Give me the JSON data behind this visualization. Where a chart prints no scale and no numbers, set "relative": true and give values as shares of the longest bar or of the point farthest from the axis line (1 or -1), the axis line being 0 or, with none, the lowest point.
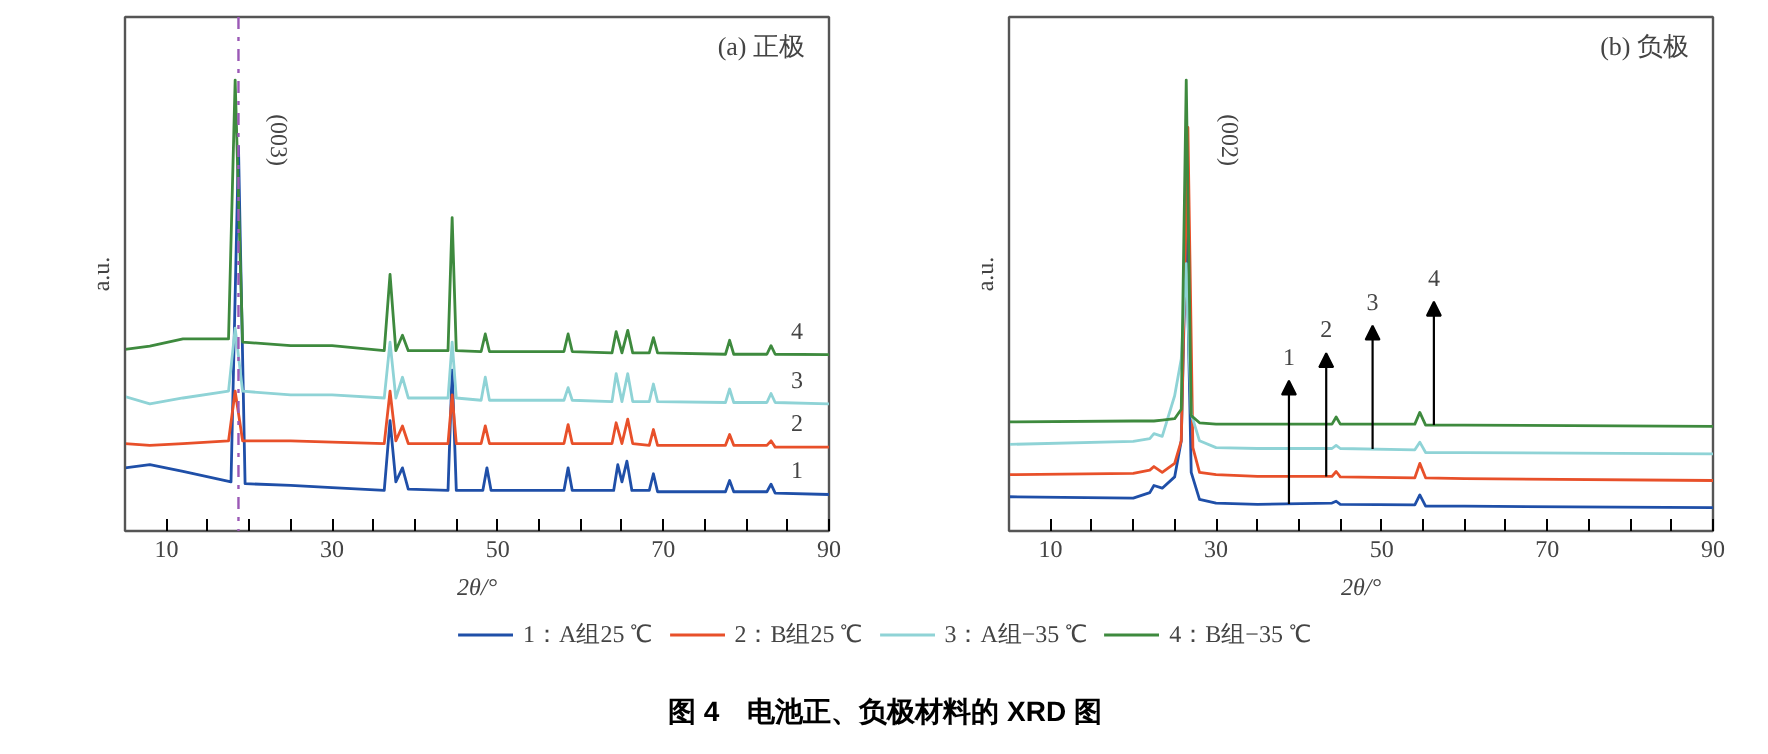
{
  "chart_data": [
    {
      "type": "line",
      "title": "(a) 正极",
      "xlabel": "2θ/°",
      "ylabel": "a.u.",
      "relative": true,
      "tick_labels": "x",
      "grid": false,
      "legend": "bottom",
      "line_style": "solid",
      "marker": "none",
      "xlim": [
        5,
        90
      ],
      "xticks": [
        10,
        {
          "value": 15,
          "label": null
        },
        {
          "value": 20,
          "label": null
        },
        {
          "value": 25,
          "label": null
        },
        30,
        {
          "value": 35,
          "label": null
        },
        {
          "value": 40,
          "label": null
        },
        {
          "value": 45,
          "label": null
        },
        50,
        {
          "value": 55,
          "label": null
        },
        {
          "value": 60,
          "label": null
        },
        {
          "value": 65,
          "label": null
        },
        70,
        {
          "value": 75,
          "label": null
        },
        {
          "value": 80,
          "label": null
        },
        {
          "value": 85,
          "label": null
        },
        90
      ],
      "series": [
        {
          "name": "1：A组25 ℃",
          "color": "#1f4fa8",
          "x": [
            5,
            8,
            12,
            17.8,
            18.7,
            19.5,
            25,
            30,
            36.3,
            37,
            37.7,
            38.5,
            39.2,
            44,
            44.5,
            45,
            48.2,
            48.7,
            49.2,
            58,
            58.5,
            59,
            64,
            64.5,
            65,
            65.6,
            66.2,
            68.3,
            68.8,
            69.3,
            77.5,
            78,
            78.5,
            82.5,
            83,
            83.5,
            90
          ],
          "values": [
            0.14,
            0.147,
            0.132,
            0.109,
            0.853,
            0.105,
            0.101,
            0.096,
            0.09,
            0.245,
            0.109,
            0.14,
            0.093,
            0.09,
            0.357,
            0.09,
            0.09,
            0.14,
            0.09,
            0.09,
            0.14,
            0.09,
            0.09,
            0.147,
            0.109,
            0.155,
            0.09,
            0.09,
            0.127,
            0.087,
            0.087,
            0.112,
            0.087,
            0.087,
            0.104,
            0.084,
            0.081
          ]
        },
        {
          "name": "2：B组25 ℃",
          "color": "#e8502a",
          "x": [
            5,
            8,
            12,
            17.5,
            18.3,
            19.2,
            25,
            30,
            36.3,
            37,
            37.7,
            38.5,
            39.2,
            44,
            44.5,
            45,
            48,
            48.5,
            49,
            58,
            58.5,
            59,
            63.8,
            64.3,
            65,
            65.7,
            66.3,
            68.3,
            68.8,
            69.3,
            77.5,
            78,
            78.5,
            82.5,
            83,
            83.5,
            90
          ],
          "values": [
            0.194,
            0.19,
            0.194,
            0.2,
            0.31,
            0.2,
            0.2,
            0.197,
            0.194,
            0.31,
            0.2,
            0.233,
            0.194,
            0.194,
            0.302,
            0.194,
            0.194,
            0.233,
            0.194,
            0.194,
            0.236,
            0.194,
            0.194,
            0.24,
            0.194,
            0.248,
            0.194,
            0.19,
            0.225,
            0.19,
            0.19,
            0.214,
            0.19,
            0.19,
            0.2,
            0.186,
            0.186
          ]
        },
        {
          "name": "3：A组−35 ℃",
          "color": "#8fd3d6",
          "x": [
            5,
            8,
            12,
            17.5,
            18.3,
            19.2,
            25,
            30,
            36.3,
            37,
            37.7,
            38.5,
            39.2,
            44,
            44.5,
            45,
            48,
            48.5,
            49,
            58,
            58.5,
            59,
            63.8,
            64.3,
            65,
            65.7,
            66.3,
            68.3,
            68.8,
            69.3,
            77.5,
            78,
            78.5,
            82.5,
            83,
            83.5,
            90
          ],
          "values": [
            0.298,
            0.282,
            0.295,
            0.31,
            0.45,
            0.31,
            0.302,
            0.302,
            0.295,
            0.419,
            0.295,
            0.341,
            0.295,
            0.295,
            0.419,
            0.295,
            0.29,
            0.341,
            0.29,
            0.29,
            0.318,
            0.29,
            0.287,
            0.349,
            0.287,
            0.349,
            0.287,
            0.287,
            0.326,
            0.287,
            0.285,
            0.315,
            0.285,
            0.285,
            0.305,
            0.285,
            0.282
          ]
        },
        {
          "name": "4：B组−35 ℃",
          "color": "#3e8a3e",
          "x": [
            5,
            8,
            12,
            17.5,
            18.3,
            19.2,
            25,
            30,
            36.3,
            37,
            37.7,
            38.5,
            39.2,
            44,
            44.5,
            45,
            48,
            48.5,
            49,
            58,
            58.5,
            59,
            63.8,
            64.3,
            65,
            65.7,
            66.3,
            68.3,
            68.8,
            69.3,
            77.5,
            78,
            78.5,
            82.5,
            83,
            83.5,
            90
          ],
          "values": [
            0.403,
            0.41,
            0.426,
            0.426,
            1.0,
            0.419,
            0.411,
            0.411,
            0.4,
            0.569,
            0.4,
            0.434,
            0.4,
            0.4,
            0.695,
            0.4,
            0.398,
            0.437,
            0.398,
            0.398,
            0.437,
            0.398,
            0.395,
            0.442,
            0.395,
            0.445,
            0.395,
            0.395,
            0.429,
            0.395,
            0.392,
            0.423,
            0.392,
            0.392,
            0.411,
            0.392,
            0.391
          ]
        }
      ],
      "ref_lines": [
        {
          "axis": "x",
          "value": 18.7,
          "color": "#9b59b6",
          "line_style": "dashed"
        }
      ],
      "annotations": [
        "1",
        "2",
        "3",
        "4",
        {
          "text": "(003)",
          "x": 18.3,
          "y": 1.0
        }
      ]
    },
    {
      "type": "line",
      "title": "(b) 负极",
      "xlabel": "2θ/°",
      "ylabel": "a.u.",
      "relative": true,
      "tick_labels": "x",
      "grid": false,
      "line_style": "solid",
      "marker": "none",
      "xlim": [
        5,
        90
      ],
      "xticks": [
        10,
        {
          "value": 15,
          "label": null
        },
        {
          "value": 20,
          "label": null
        },
        {
          "value": 25,
          "label": null
        },
        30,
        {
          "value": 35,
          "label": null
        },
        {
          "value": 40,
          "label": null
        },
        {
          "value": 45,
          "label": null
        },
        50,
        {
          "value": 55,
          "label": null
        },
        {
          "value": 60,
          "label": null
        },
        {
          "value": 65,
          "label": null
        },
        70,
        {
          "value": 75,
          "label": null
        },
        {
          "value": 80,
          "label": null
        },
        {
          "value": 85,
          "label": null
        },
        90
      ],
      "x": [
        5,
        20,
        22,
        22.5,
        23.5,
        25,
        25.8,
        26.4,
        27,
        28,
        30,
        35,
        44,
        44.5,
        45,
        54,
        54.6,
        55.3,
        60,
        90
      ],
      "series": [
        {
          "color": "#1f4fa8",
          "values": [
            0.076,
            0.073,
            0.085,
            0.101,
            0.095,
            0.12,
            0.2,
            0.677,
            0.13,
            0.07,
            0.062,
            0.059,
            0.062,
            0.066,
            0.059,
            0.058,
            0.08,
            0.055,
            0.055,
            0.052
          ]
        },
        {
          "color": "#e8502a",
          "x": [
            5,
            20,
            22,
            22.5,
            23.5,
            25,
            25.8,
            26.6,
            27.2,
            28,
            30,
            35,
            44,
            44.5,
            45,
            54,
            54.6,
            55.3,
            60,
            90
          ],
          "values": [
            0.125,
            0.128,
            0.135,
            0.143,
            0.13,
            0.15,
            0.2,
            0.895,
            0.185,
            0.13,
            0.125,
            0.121,
            0.121,
            0.132,
            0.12,
            0.118,
            0.15,
            0.118,
            0.116,
            0.112
          ]
        },
        {
          "color": "#8fd3d6",
          "values": [
            0.192,
            0.199,
            0.205,
            0.216,
            0.21,
            0.3,
            0.382,
            0.593,
            0.26,
            0.2,
            0.185,
            0.183,
            0.183,
            0.19,
            0.183,
            0.18,
            0.197,
            0.174,
            0.174,
            0.171
          ]
        },
        {
          "color": "#3e8a3e",
          "values": [
            0.242,
            0.244,
            0.244,
            0.244,
            0.246,
            0.249,
            0.27,
            1.0,
            0.256,
            0.24,
            0.237,
            0.237,
            0.237,
            0.253,
            0.237,
            0.237,
            0.263,
            0.235,
            0.235,
            0.232
          ]
        }
      ],
      "annotations": [
        {
          "text": "1",
          "x": 38.8,
          "y": 0.06
        },
        {
          "text": "2",
          "x": 43.3,
          "y": 0.121
        },
        {
          "text": "3",
          "x": 48.9,
          "y": 0.182
        },
        {
          "text": "4",
          "x": 56.3,
          "y": 0.235
        },
        {
          "text": "(002)",
          "x": 26.4,
          "y": 1.0
        },
        "图 4　电池正、负极材料的 XRD 图"
      ]
    }
  ]
}
